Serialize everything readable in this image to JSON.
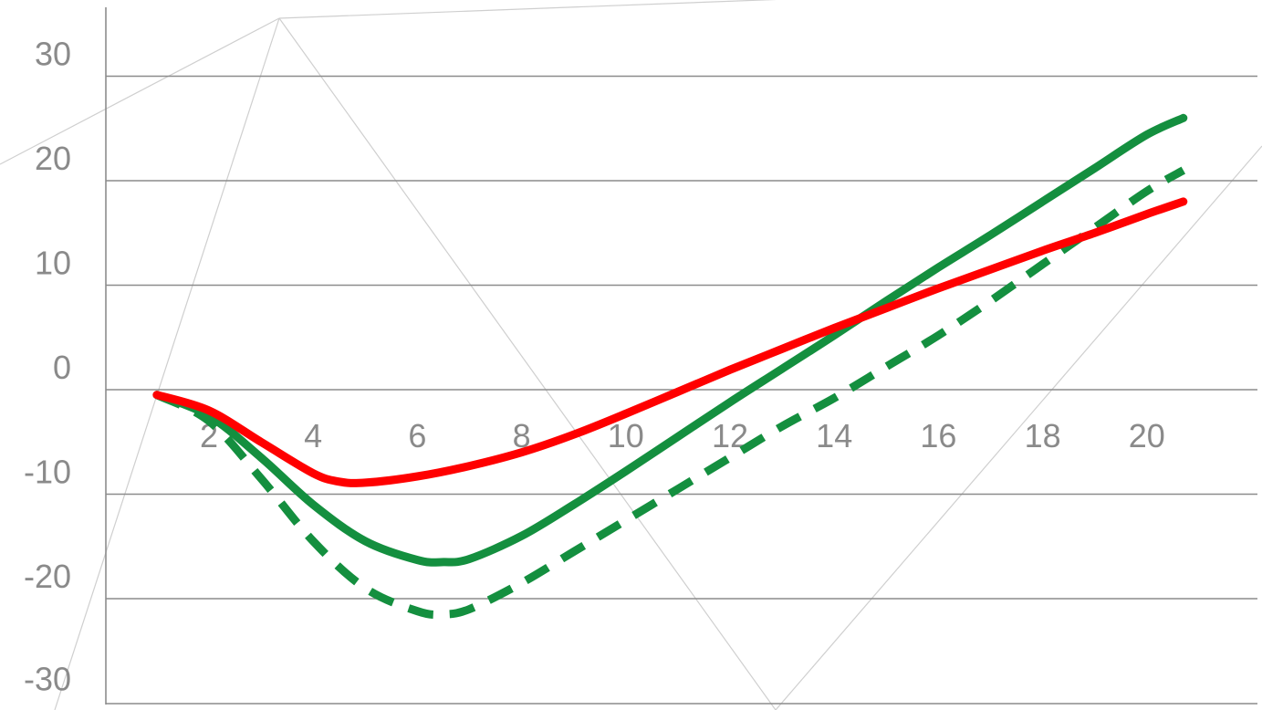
{
  "chart_data": {
    "type": "line",
    "title": "",
    "xlabel": "",
    "ylabel": "",
    "xlim": [
      0,
      22
    ],
    "ylim": [
      -30,
      35
    ],
    "x_ticks": [
      2,
      4,
      6,
      8,
      10,
      12,
      14,
      16,
      18,
      20
    ],
    "y_ticks": [
      30,
      20,
      10,
      0,
      -10,
      -20,
      -30
    ],
    "grid": "horizontal",
    "legend": "none",
    "series": [
      {
        "color": "#148f3f",
        "style": "solid",
        "x": [
          1,
          2,
          3,
          4,
          5,
          6,
          6.5,
          7,
          8,
          9,
          10,
          11,
          12,
          13,
          14,
          15,
          16,
          17,
          18,
          19,
          20,
          20.7
        ],
        "y": [
          -0.5,
          -2.5,
          -6.5,
          -11,
          -14.5,
          -16.3,
          -16.5,
          -16.2,
          -14,
          -11,
          -7.8,
          -4.5,
          -1.2,
          2,
          5.2,
          8.5,
          11.7,
          14.8,
          18,
          21.2,
          24.4,
          26
        ]
      },
      {
        "color": "#148f3f",
        "style": "dashed",
        "x": [
          1,
          2,
          3,
          4,
          5,
          6,
          6.5,
          7,
          8,
          9,
          10,
          11,
          12,
          13,
          14,
          15,
          16,
          17,
          18,
          19,
          20,
          20.7
        ],
        "y": [
          -0.5,
          -3,
          -8.5,
          -14.5,
          -19,
          -21.2,
          -21.5,
          -21,
          -18.5,
          -15.5,
          -12.5,
          -9.5,
          -6.5,
          -3.5,
          -0.8,
          2.2,
          5.2,
          8.5,
          12,
          15.5,
          19,
          21
        ]
      },
      {
        "color": "#ff0000",
        "style": "solid",
        "x": [
          1,
          2,
          3,
          4,
          4.5,
          5,
          6,
          7,
          8,
          9,
          10,
          11,
          12,
          13,
          14,
          15,
          16,
          17,
          18,
          19,
          20,
          20.7
        ],
        "y": [
          -0.5,
          -2,
          -5,
          -8,
          -8.8,
          -8.9,
          -8.3,
          -7.3,
          -6,
          -4.3,
          -2.3,
          -0.2,
          1.9,
          3.9,
          5.9,
          7.8,
          9.7,
          11.5,
          13.3,
          15,
          16.8,
          18
        ]
      }
    ]
  }
}
